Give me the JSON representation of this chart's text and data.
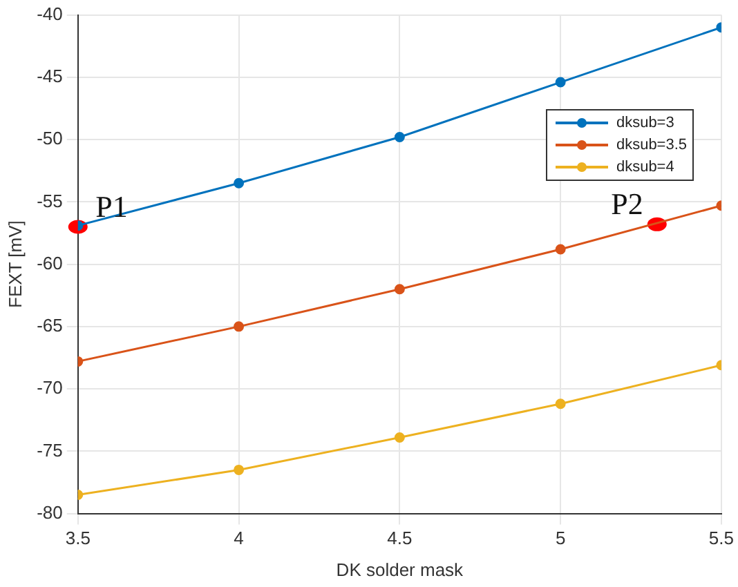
{
  "chart_data": {
    "type": "line",
    "xlabel": "DK solder mask",
    "ylabel": "FEXT [mV]",
    "x": [
      3.5,
      4,
      4.5,
      5,
      5.5
    ],
    "series": [
      {
        "name": "dksub=3",
        "color": "#0072bd",
        "values": [
          -56.9,
          -53.5,
          -49.8,
          -45.4,
          -41
        ]
      },
      {
        "name": "dksub=3.5",
        "color": "#d95319",
        "values": [
          -67.8,
          -65,
          -62,
          -58.8,
          -55.3
        ]
      },
      {
        "name": "dksub=4",
        "color": "#edb120",
        "values": [
          -78.5,
          -76.5,
          -73.9,
          -71.2,
          -68.1
        ]
      }
    ],
    "xlim": [
      3.5,
      5.5
    ],
    "xticks": [
      3.5,
      4,
      4.5,
      5,
      5.5
    ],
    "ylim": [
      -80,
      -40
    ],
    "yticks": [
      -80,
      -75,
      -70,
      -65,
      -60,
      -55,
      -50,
      -45,
      -40
    ],
    "annotations": [
      {
        "text": "P1",
        "x": 3.5,
        "y": -57
      },
      {
        "text": "P2",
        "x": 5.3,
        "y": -56.8
      }
    ],
    "grid": true,
    "legend": "right",
    "marker": "circle",
    "line_style": "solid"
  }
}
